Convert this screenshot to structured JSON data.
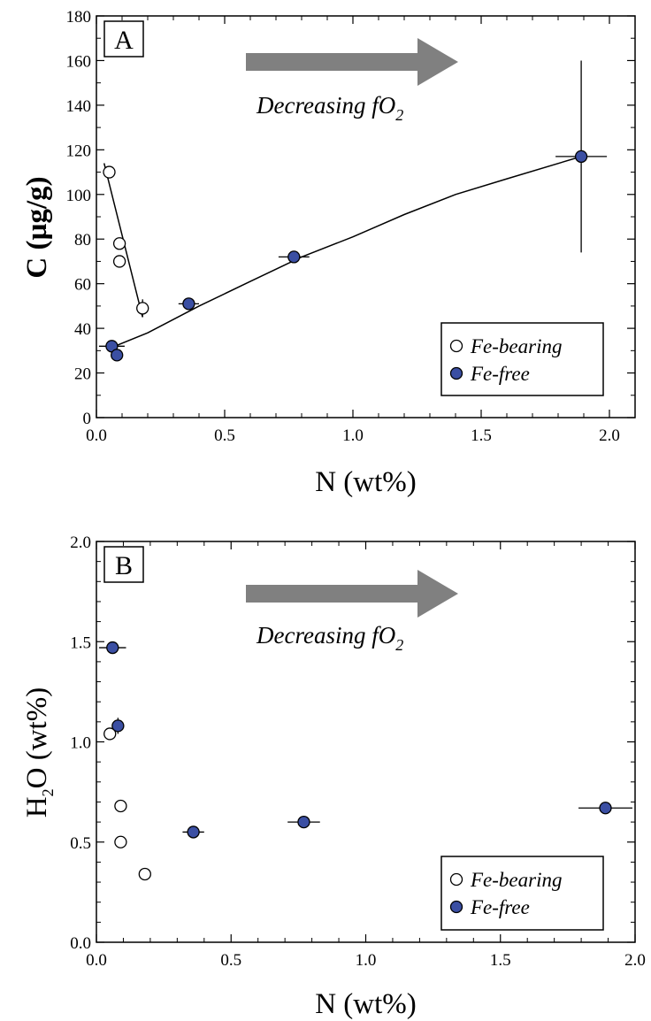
{
  "colors": {
    "fe_free": "#3b4fa3",
    "fe_bearing": "#ffffff",
    "arrow": "#808080"
  },
  "chart_data": [
    {
      "type": "scatter",
      "panel": "A",
      "xlabel": "N (wt%)",
      "ylabel": "C (µg/g)",
      "xlim": [
        0,
        2.1
      ],
      "ylim": [
        0,
        180
      ],
      "xticks": [
        "0.0",
        "0.5",
        "1.0",
        "1.5",
        "2.0"
      ],
      "yticks": [
        "0",
        "20",
        "40",
        "60",
        "80",
        "100",
        "120",
        "140",
        "160",
        "180"
      ],
      "annotation": {
        "text": "Decreasing fO",
        "subscript": "2"
      },
      "legend": {
        "position": "bottom-right",
        "entries": [
          "Fe-bearing",
          "Fe-free"
        ]
      },
      "series": [
        {
          "name": "Fe-bearing",
          "marker": "open-circle",
          "points": [
            {
              "x": 0.05,
              "y": 110
            },
            {
              "x": 0.09,
              "y": 78
            },
            {
              "x": 0.09,
              "y": 70
            },
            {
              "x": 0.18,
              "y": 49,
              "yerr": 4
            }
          ],
          "fit": [
            [
              0.03,
              114
            ],
            [
              0.18,
              45
            ]
          ]
        },
        {
          "name": "Fe-free",
          "marker": "filled-circle",
          "points": [
            {
              "x": 0.06,
              "y": 32,
              "xerr": 0.05
            },
            {
              "x": 0.08,
              "y": 28
            },
            {
              "x": 0.36,
              "y": 51,
              "xerr": 0.04
            },
            {
              "x": 0.77,
              "y": 72,
              "xerr": 0.06
            },
            {
              "x": 1.89,
              "y": 117,
              "xerr": 0.1,
              "yerr": 43
            }
          ],
          "fit": [
            [
              0.05,
              31
            ],
            [
              0.2,
              38
            ],
            [
              0.4,
              50
            ],
            [
              0.6,
              61
            ],
            [
              0.8,
              72
            ],
            [
              1.0,
              81
            ],
            [
              1.2,
              91
            ],
            [
              1.4,
              100
            ],
            [
              1.6,
              107
            ],
            [
              1.89,
              117
            ]
          ]
        }
      ]
    },
    {
      "type": "scatter",
      "panel": "B",
      "xlabel": "N (wt%)",
      "ylabel": {
        "main": "H",
        "subscript": "2",
        "rest": "O (wt%)"
      },
      "xlim": [
        0,
        2.0
      ],
      "ylim": [
        0,
        2.0
      ],
      "xticks": [
        "0.0",
        "0.5",
        "1.0",
        "1.5",
        "2.0"
      ],
      "yticks": [
        "0.0",
        "0.5",
        "1.0",
        "1.5",
        "2.0"
      ],
      "annotation": {
        "text": "Decreasing fO",
        "subscript": "2"
      },
      "legend": {
        "position": "bottom-right",
        "entries": [
          "Fe-bearing",
          "Fe-free"
        ]
      },
      "series": [
        {
          "name": "Fe-bearing",
          "marker": "open-circle",
          "points": [
            {
              "x": 0.05,
              "y": 1.04
            },
            {
              "x": 0.09,
              "y": 0.68
            },
            {
              "x": 0.09,
              "y": 0.5
            },
            {
              "x": 0.18,
              "y": 0.34
            }
          ]
        },
        {
          "name": "Fe-free",
          "marker": "filled-circle",
          "points": [
            {
              "x": 0.06,
              "y": 1.47,
              "xerr": 0.05
            },
            {
              "x": 0.08,
              "y": 1.08,
              "yerr": 0.04
            },
            {
              "x": 0.36,
              "y": 0.55,
              "xerr": 0.04
            },
            {
              "x": 0.77,
              "y": 0.6,
              "xerr": 0.06
            },
            {
              "x": 1.89,
              "y": 0.67,
              "xerr": 0.1,
              "yerr": 0.03
            }
          ]
        }
      ]
    }
  ]
}
